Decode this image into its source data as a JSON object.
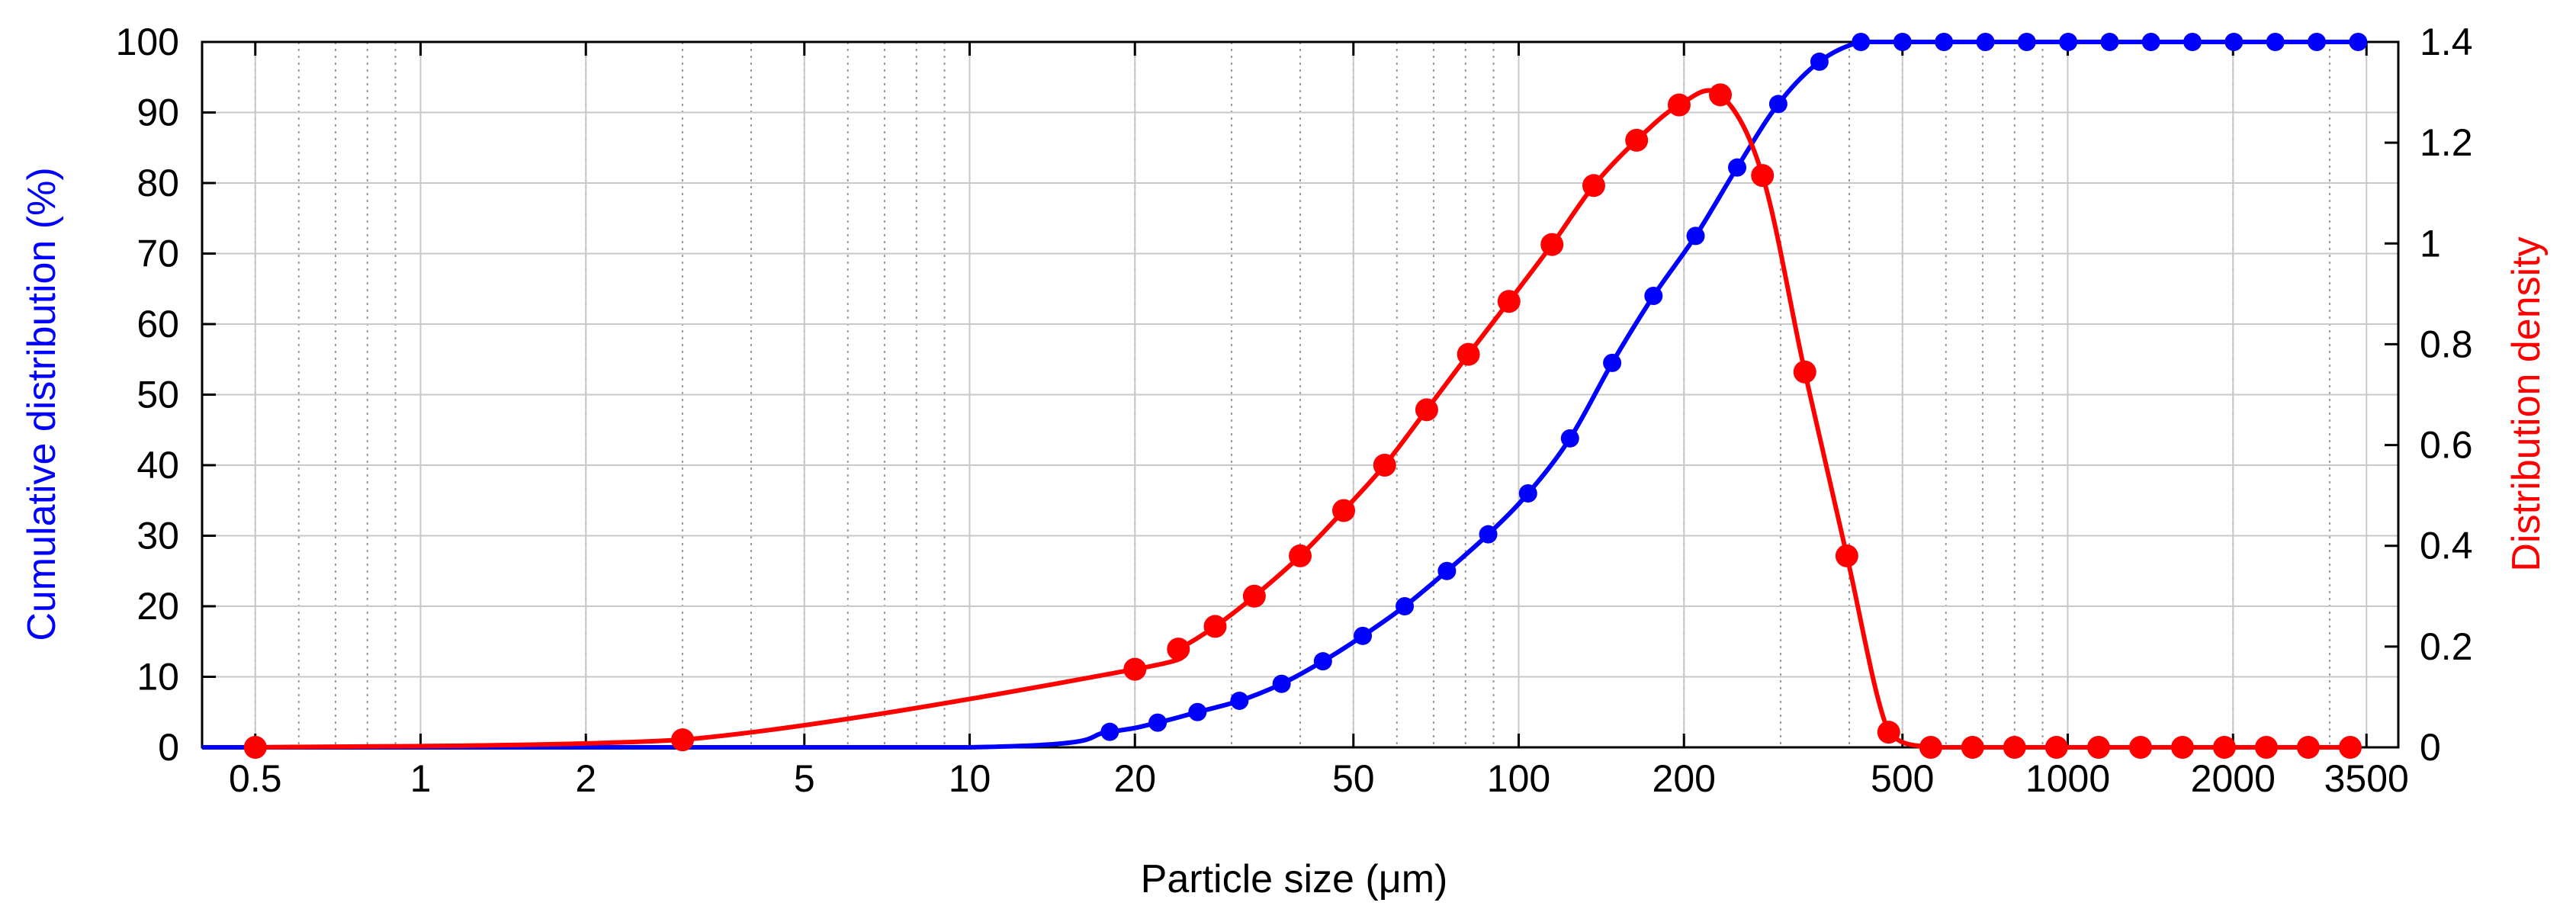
{
  "chart_data": {
    "type": "line",
    "title": "",
    "xlabel": "Particle size (μm)",
    "ylabel_left": "Cumulative distribution (%)",
    "ylabel_right": "Distribution density",
    "x_scale": "log",
    "xlim": [
      0.4,
      4000
    ],
    "ylim_left": [
      0,
      100
    ],
    "ylim_right": [
      0,
      1.4
    ],
    "grid": true,
    "x_tick_labels": [
      "0.5",
      "1",
      "2",
      "5",
      "10",
      "20",
      "50",
      "100",
      "200",
      "500",
      "1000",
      "2000",
      "3500"
    ],
    "x_tick_values": [
      0.5,
      1,
      2,
      5,
      10,
      20,
      50,
      100,
      200,
      500,
      1000,
      2000,
      3500
    ],
    "y_left_ticks": [
      0,
      10,
      20,
      30,
      40,
      50,
      60,
      70,
      80,
      90,
      100
    ],
    "y_left_tick_labels": [
      "0",
      "10",
      "20",
      "30",
      "40",
      "50",
      "60",
      "70",
      "80",
      "90",
      "100"
    ],
    "y_right_ticks": [
      0,
      0.2,
      0.4,
      0.6,
      0.8,
      1.0,
      1.2,
      1.4
    ],
    "y_right_tick_labels": [
      "0",
      "0.2",
      "0.4",
      "0.6",
      "0.8",
      "1",
      "1.2",
      "1.4"
    ],
    "series": [
      {
        "name": "Cumulative distribution",
        "axis": "left",
        "color": "#0000ff",
        "x": [
          18,
          22,
          26,
          31,
          37,
          44,
          52,
          62,
          74,
          88,
          104,
          124,
          148,
          176,
          210,
          250,
          297,
          353,
          420,
          500,
          595,
          708,
          842,
          1002,
          1192,
          1418,
          1687,
          2007,
          2388,
          2841,
          3380
        ],
        "values": [
          2.2,
          3.5,
          5.0,
          6.6,
          9.0,
          12.2,
          15.8,
          20.0,
          25.0,
          30.2,
          36.0,
          43.8,
          54.5,
          64.0,
          72.5,
          82.2,
          91.2,
          97.2,
          100,
          100,
          100,
          100,
          100,
          100,
          100,
          100,
          100,
          100,
          100,
          100,
          100
        ]
      },
      {
        "name": "Distribution density",
        "axis": "right",
        "color": "#ff0000",
        "x": [
          0.5,
          3.0,
          20,
          24,
          28,
          33,
          40,
          48,
          57,
          68,
          81,
          96,
          115,
          137,
          164,
          196,
          233,
          278,
          332,
          396,
          472,
          563,
          671,
          800,
          954,
          1138,
          1357,
          1618,
          1929,
          2300,
          2742,
          3270
        ],
        "values": [
          0.0,
          0.015,
          0.155,
          0.195,
          0.24,
          0.3,
          0.38,
          0.47,
          0.56,
          0.67,
          0.78,
          0.885,
          0.998,
          1.115,
          1.205,
          1.275,
          1.295,
          1.135,
          0.745,
          0.38,
          0.03,
          0.0,
          0.0,
          0.0,
          0.0,
          0.0,
          0.0,
          0.0,
          0.0,
          0.0,
          0.0,
          0.0
        ]
      }
    ]
  }
}
